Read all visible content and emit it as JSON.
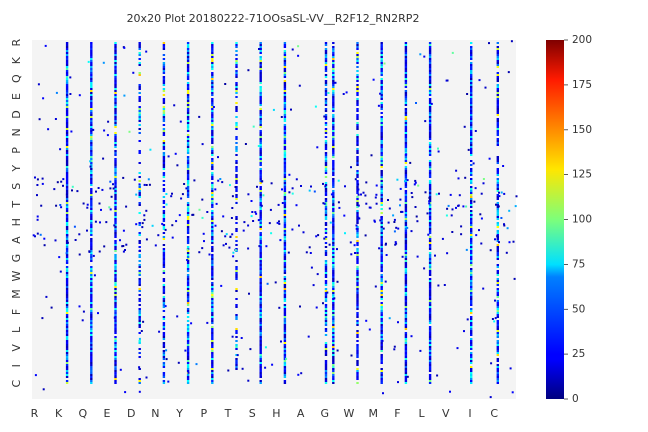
{
  "chart_data": {
    "type": "heatmap",
    "title": "20x20 Plot 20180222-71OOsaSL-VV__R2F12_RN2RP2",
    "x_tick_labels": [
      "R",
      "K",
      "Q",
      "E",
      "D",
      "N",
      "Y",
      "P",
      "T",
      "S",
      "H",
      "A",
      "G",
      "W",
      "M",
      "F",
      "L",
      "V",
      "I",
      "C"
    ],
    "y_tick_labels": [
      "R",
      "K",
      "Q",
      "E",
      "D",
      "N",
      "P",
      "Y",
      "S",
      "T",
      "H",
      "A",
      "G",
      "W",
      "M",
      "F",
      "L",
      "V",
      "I",
      "C"
    ],
    "colorbar": {
      "colormap": "jet",
      "vmin": 0,
      "vmax": 200,
      "ticks": [
        0,
        25,
        50,
        75,
        100,
        125,
        150,
        175,
        200
      ]
    },
    "background_color": "#f4f4f4",
    "dense_columns": [
      {
        "label": "K",
        "fraction": 0.4,
        "density": 0.95
      },
      {
        "label": "Q",
        "fraction": 0.4,
        "density": 0.95
      },
      {
        "label": "E",
        "fraction": 0.4,
        "density": 0.95
      },
      {
        "label": "D",
        "fraction": 0.4,
        "density": 0.55
      },
      {
        "label": "N",
        "fraction": 0.4,
        "density": 0.75
      },
      {
        "label": "Y",
        "fraction": 0.4,
        "density": 0.95
      },
      {
        "label": "P",
        "fraction": 0.4,
        "density": 0.95
      },
      {
        "label": "T",
        "fraction": 0.4,
        "density": 0.5
      },
      {
        "label": "S",
        "fraction": 0.4,
        "density": 0.95
      },
      {
        "label": "H",
        "fraction": 0.4,
        "density": 0.95
      },
      {
        "label": "G",
        "fraction": 0.1,
        "density": 0.8
      },
      {
        "label": "G",
        "fraction": 0.4,
        "density": 0.95
      },
      {
        "label": "W",
        "fraction": 0.4,
        "density": 0.9
      },
      {
        "label": "M",
        "fraction": 0.4,
        "density": 0.95
      },
      {
        "label": "F",
        "fraction": 0.4,
        "density": 0.95
      },
      {
        "label": "L",
        "fraction": 0.4,
        "density": 0.95
      },
      {
        "label": "I",
        "fraction": 0.1,
        "density": 0.95
      },
      {
        "label": "C",
        "fraction": 0.2,
        "density": 0.85
      }
    ]
  }
}
